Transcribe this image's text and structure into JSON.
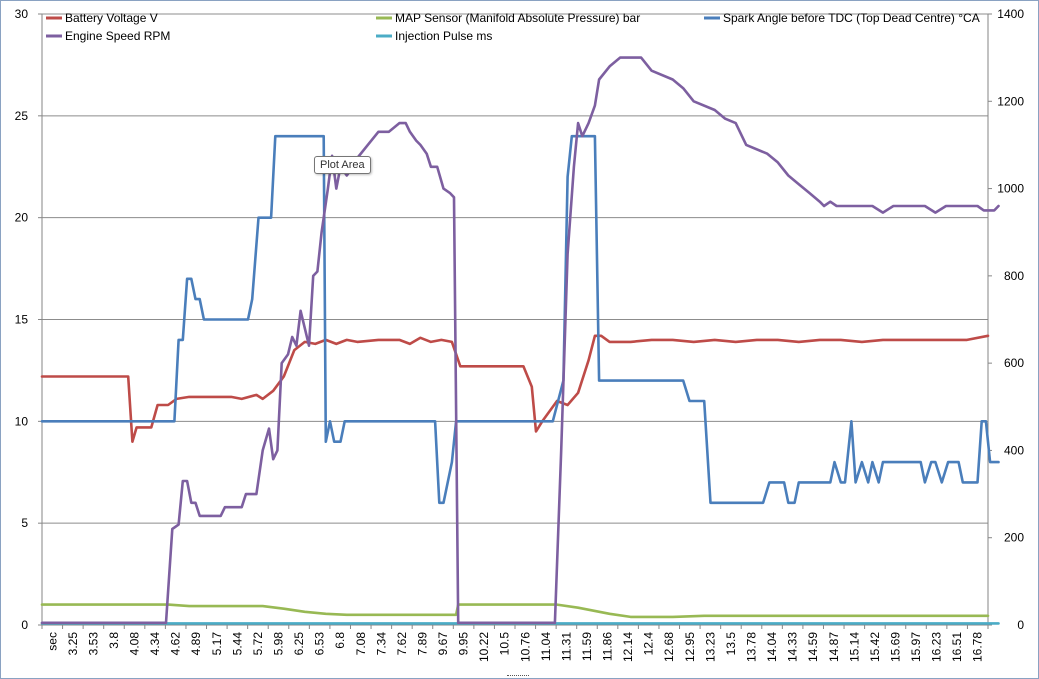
{
  "chart_data": {
    "type": "line",
    "y_left": {
      "lim": [
        0,
        30
      ],
      "ticks": [
        "0",
        "5",
        "10",
        "15",
        "20",
        "25",
        "30"
      ]
    },
    "y_right": {
      "lim": [
        0,
        1400
      ],
      "ticks": [
        "0",
        "200",
        "400",
        "600",
        "800",
        "1000",
        "1200",
        "1400"
      ]
    },
    "x_labels": [
      "sec",
      "3.25",
      "3.53",
      "3.8",
      "4.08",
      "4.34",
      "4.62",
      "4.89",
      "5.17",
      "5.44",
      "5.72",
      "5.98",
      "6.25",
      "6.53",
      "6.8",
      "7.08",
      "7.34",
      "7.62",
      "7.89",
      "9.67",
      "9.95",
      "10.22",
      "10.5",
      "10.76",
      "11.04",
      "11.31",
      "11.59",
      "11.86",
      "12.14",
      "12.4",
      "12.68",
      "12.95",
      "13.23",
      "13.5",
      "13.78",
      "14.04",
      "14.33",
      "14.59",
      "14.87",
      "15.14",
      "15.42",
      "15.69",
      "15.97",
      "16.23",
      "16.51",
      "16.78"
    ],
    "legend": [
      {
        "name": "Battery Voltage V",
        "color": "#be4b48"
      },
      {
        "name": "MAP Sensor (Manifold  Absolute Pressure) bar",
        "color": "#98b954"
      },
      {
        "name": "Spark Angle before TDC (Top Dead Centre) °CA",
        "color": "#4a7ebb"
      },
      {
        "name": "Engine Speed  RPM",
        "color": "#7d5fa0"
      },
      {
        "name": "Injection Pulse ms",
        "color": "#4bacc6"
      }
    ],
    "x_domain": [
      0,
      45
    ],
    "series": [
      {
        "name": "Battery Voltage V",
        "axis": "left",
        "color": "#be4b48",
        "points": [
          [
            0,
            12.2
          ],
          [
            4.1,
            12.2
          ],
          [
            4.3,
            9
          ],
          [
            4.5,
            9.7
          ],
          [
            5.2,
            9.7
          ],
          [
            5.5,
            10.8
          ],
          [
            6,
            10.8
          ],
          [
            6.4,
            11.1
          ],
          [
            7,
            11.2
          ],
          [
            9,
            11.2
          ],
          [
            9.5,
            11.1
          ],
          [
            10.2,
            11.3
          ],
          [
            10.5,
            11.1
          ],
          [
            11,
            11.5
          ],
          [
            11.5,
            12.2
          ],
          [
            12,
            13.5
          ],
          [
            12.5,
            13.9
          ],
          [
            13,
            13.8
          ],
          [
            13.5,
            14
          ],
          [
            14,
            13.8
          ],
          [
            14.5,
            14
          ],
          [
            15,
            13.9
          ],
          [
            16,
            14
          ],
          [
            17,
            14
          ],
          [
            17.5,
            13.8
          ],
          [
            18,
            14.1
          ],
          [
            18.5,
            13.9
          ],
          [
            19,
            14
          ],
          [
            19.5,
            13.9
          ],
          [
            19.9,
            12.7
          ],
          [
            22,
            12.7
          ],
          [
            22.9,
            12.7
          ],
          [
            23.3,
            11.7
          ],
          [
            23.5,
            9.5
          ],
          [
            23.8,
            10
          ],
          [
            24.5,
            11
          ],
          [
            25,
            10.8
          ],
          [
            25.5,
            11.4
          ],
          [
            26,
            13
          ],
          [
            26.3,
            14.2
          ],
          [
            26.6,
            14.2
          ],
          [
            27,
            13.9
          ],
          [
            28,
            13.9
          ],
          [
            29,
            14
          ],
          [
            30,
            14
          ],
          [
            31,
            13.9
          ],
          [
            32,
            14
          ],
          [
            33,
            13.9
          ],
          [
            34,
            14
          ],
          [
            35,
            14
          ],
          [
            36,
            13.9
          ],
          [
            37,
            14
          ],
          [
            38,
            14
          ],
          [
            39,
            13.9
          ],
          [
            40,
            14
          ],
          [
            41,
            14
          ],
          [
            42,
            14
          ],
          [
            43,
            14
          ],
          [
            44,
            14
          ],
          [
            45,
            14.2
          ]
        ]
      },
      {
        "name": "MAP Sensor (Manifold  Absolute Pressure) bar",
        "axis": "left",
        "color": "#98b954",
        "points": [
          [
            0,
            1
          ],
          [
            6,
            1
          ],
          [
            7,
            0.93
          ],
          [
            10.5,
            0.93
          ],
          [
            11.5,
            0.8
          ],
          [
            12.5,
            0.65
          ],
          [
            13.5,
            0.55
          ],
          [
            14.5,
            0.5
          ],
          [
            19.7,
            0.5
          ],
          [
            19.8,
            1
          ],
          [
            24.5,
            1
          ],
          [
            25.5,
            0.85
          ],
          [
            27,
            0.55
          ],
          [
            28,
            0.4
          ],
          [
            30,
            0.4
          ],
          [
            31.5,
            0.45
          ],
          [
            45,
            0.45
          ]
        ]
      },
      {
        "name": "Spark Angle before TDC (Top Dead Centre) °CA",
        "axis": "left",
        "color": "#4a7ebb",
        "points": [
          [
            0,
            10
          ],
          [
            6,
            10
          ],
          [
            6.3,
            10
          ],
          [
            6.5,
            14
          ],
          [
            6.7,
            14
          ],
          [
            6.9,
            17
          ],
          [
            7.1,
            17
          ],
          [
            7.3,
            16
          ],
          [
            7.5,
            16
          ],
          [
            7.7,
            15
          ],
          [
            9.8,
            15
          ],
          [
            10,
            16
          ],
          [
            10.3,
            20
          ],
          [
            10.9,
            20
          ],
          [
            11.1,
            24
          ],
          [
            13.2,
            24
          ],
          [
            13.4,
            24
          ],
          [
            13.5,
            9
          ],
          [
            13.7,
            10
          ],
          [
            13.9,
            9
          ],
          [
            14.2,
            9
          ],
          [
            14.4,
            10
          ],
          [
            18.7,
            10
          ],
          [
            18.9,
            6
          ],
          [
            19.1,
            6
          ],
          [
            19.5,
            8
          ],
          [
            19.7,
            10
          ],
          [
            24.3,
            10
          ],
          [
            24.8,
            12
          ],
          [
            25,
            22
          ],
          [
            25.2,
            24
          ],
          [
            26.3,
            24
          ],
          [
            26.5,
            12
          ],
          [
            30.5,
            12
          ],
          [
            30.8,
            11
          ],
          [
            31.5,
            11
          ],
          [
            31.8,
            6
          ],
          [
            34.3,
            6
          ],
          [
            34.6,
            7
          ],
          [
            35.3,
            7
          ],
          [
            35.5,
            6
          ],
          [
            35.8,
            6
          ],
          [
            36,
            7
          ],
          [
            37.5,
            7
          ],
          [
            37.7,
            8
          ],
          [
            38,
            7
          ],
          [
            38.2,
            7
          ],
          [
            38.5,
            10
          ],
          [
            38.7,
            7
          ],
          [
            39,
            8
          ],
          [
            39.3,
            7
          ],
          [
            39.5,
            8
          ],
          [
            39.8,
            7
          ],
          [
            40,
            8
          ],
          [
            41.8,
            8
          ],
          [
            42,
            7
          ],
          [
            42.3,
            8
          ],
          [
            42.5,
            8
          ],
          [
            42.8,
            7
          ],
          [
            43.1,
            8
          ],
          [
            43.6,
            8
          ],
          [
            43.8,
            7
          ],
          [
            44.5,
            7
          ],
          [
            44.7,
            10
          ],
          [
            44.9,
            10
          ],
          [
            45.1,
            8
          ],
          [
            45.5,
            8
          ]
        ]
      },
      {
        "name": "Engine Speed  RPM",
        "axis": "right",
        "color": "#7d5fa0",
        "points": [
          [
            0,
            5
          ],
          [
            5.9,
            5
          ],
          [
            6.2,
            220
          ],
          [
            6.5,
            230
          ],
          [
            6.7,
            330
          ],
          [
            6.9,
            330
          ],
          [
            7.1,
            280
          ],
          [
            7.3,
            280
          ],
          [
            7.5,
            250
          ],
          [
            8.5,
            250
          ],
          [
            8.7,
            270
          ],
          [
            9.5,
            270
          ],
          [
            9.7,
            300
          ],
          [
            10.2,
            300
          ],
          [
            10.5,
            400
          ],
          [
            10.8,
            450
          ],
          [
            11,
            380
          ],
          [
            11.2,
            400
          ],
          [
            11.4,
            600
          ],
          [
            11.7,
            620
          ],
          [
            11.9,
            660
          ],
          [
            12.1,
            640
          ],
          [
            12.3,
            720
          ],
          [
            12.5,
            680
          ],
          [
            12.7,
            640
          ],
          [
            12.9,
            800
          ],
          [
            13.1,
            810
          ],
          [
            13.3,
            900
          ],
          [
            13.6,
            1000
          ],
          [
            13.8,
            1075
          ],
          [
            14,
            1000
          ],
          [
            14.2,
            1050
          ],
          [
            14.5,
            1030
          ],
          [
            14.8,
            1050
          ],
          [
            15,
            1070
          ],
          [
            15.5,
            1100
          ],
          [
            16,
            1130
          ],
          [
            16.5,
            1130
          ],
          [
            17,
            1150
          ],
          [
            17.3,
            1150
          ],
          [
            17.5,
            1130
          ],
          [
            17.8,
            1110
          ],
          [
            18,
            1100
          ],
          [
            18.3,
            1080
          ],
          [
            18.5,
            1050
          ],
          [
            18.8,
            1050
          ],
          [
            19.1,
            1000
          ],
          [
            19.4,
            990
          ],
          [
            19.6,
            980
          ],
          [
            19.8,
            5
          ],
          [
            24.4,
            5
          ],
          [
            24.7,
            400
          ],
          [
            25,
            850
          ],
          [
            25.3,
            1050
          ],
          [
            25.5,
            1150
          ],
          [
            25.7,
            1120
          ],
          [
            26,
            1150
          ],
          [
            26.3,
            1190
          ],
          [
            26.5,
            1250
          ],
          [
            27,
            1280
          ],
          [
            27.5,
            1300
          ],
          [
            28.5,
            1300
          ],
          [
            29,
            1270
          ],
          [
            30,
            1250
          ],
          [
            30.5,
            1230
          ],
          [
            31,
            1200
          ],
          [
            32,
            1180
          ],
          [
            32.5,
            1160
          ],
          [
            33,
            1150
          ],
          [
            33.5,
            1100
          ],
          [
            34.5,
            1080
          ],
          [
            35,
            1060
          ],
          [
            35.5,
            1030
          ],
          [
            36,
            1010
          ],
          [
            36.5,
            990
          ],
          [
            37,
            970
          ],
          [
            37.2,
            960
          ],
          [
            37.5,
            970
          ],
          [
            37.8,
            960
          ],
          [
            39.5,
            960
          ],
          [
            40,
            945
          ],
          [
            40.5,
            960
          ],
          [
            42,
            960
          ],
          [
            42.5,
            945
          ],
          [
            43,
            960
          ],
          [
            44.5,
            960
          ],
          [
            44.8,
            950
          ],
          [
            45.3,
            950
          ],
          [
            45.5,
            960
          ]
        ]
      },
      {
        "name": "Injection Pulse ms",
        "axis": "left",
        "color": "#4bacc6",
        "points": [
          [
            0,
            0.08
          ],
          [
            45.5,
            0.08
          ]
        ]
      }
    ]
  }
}
